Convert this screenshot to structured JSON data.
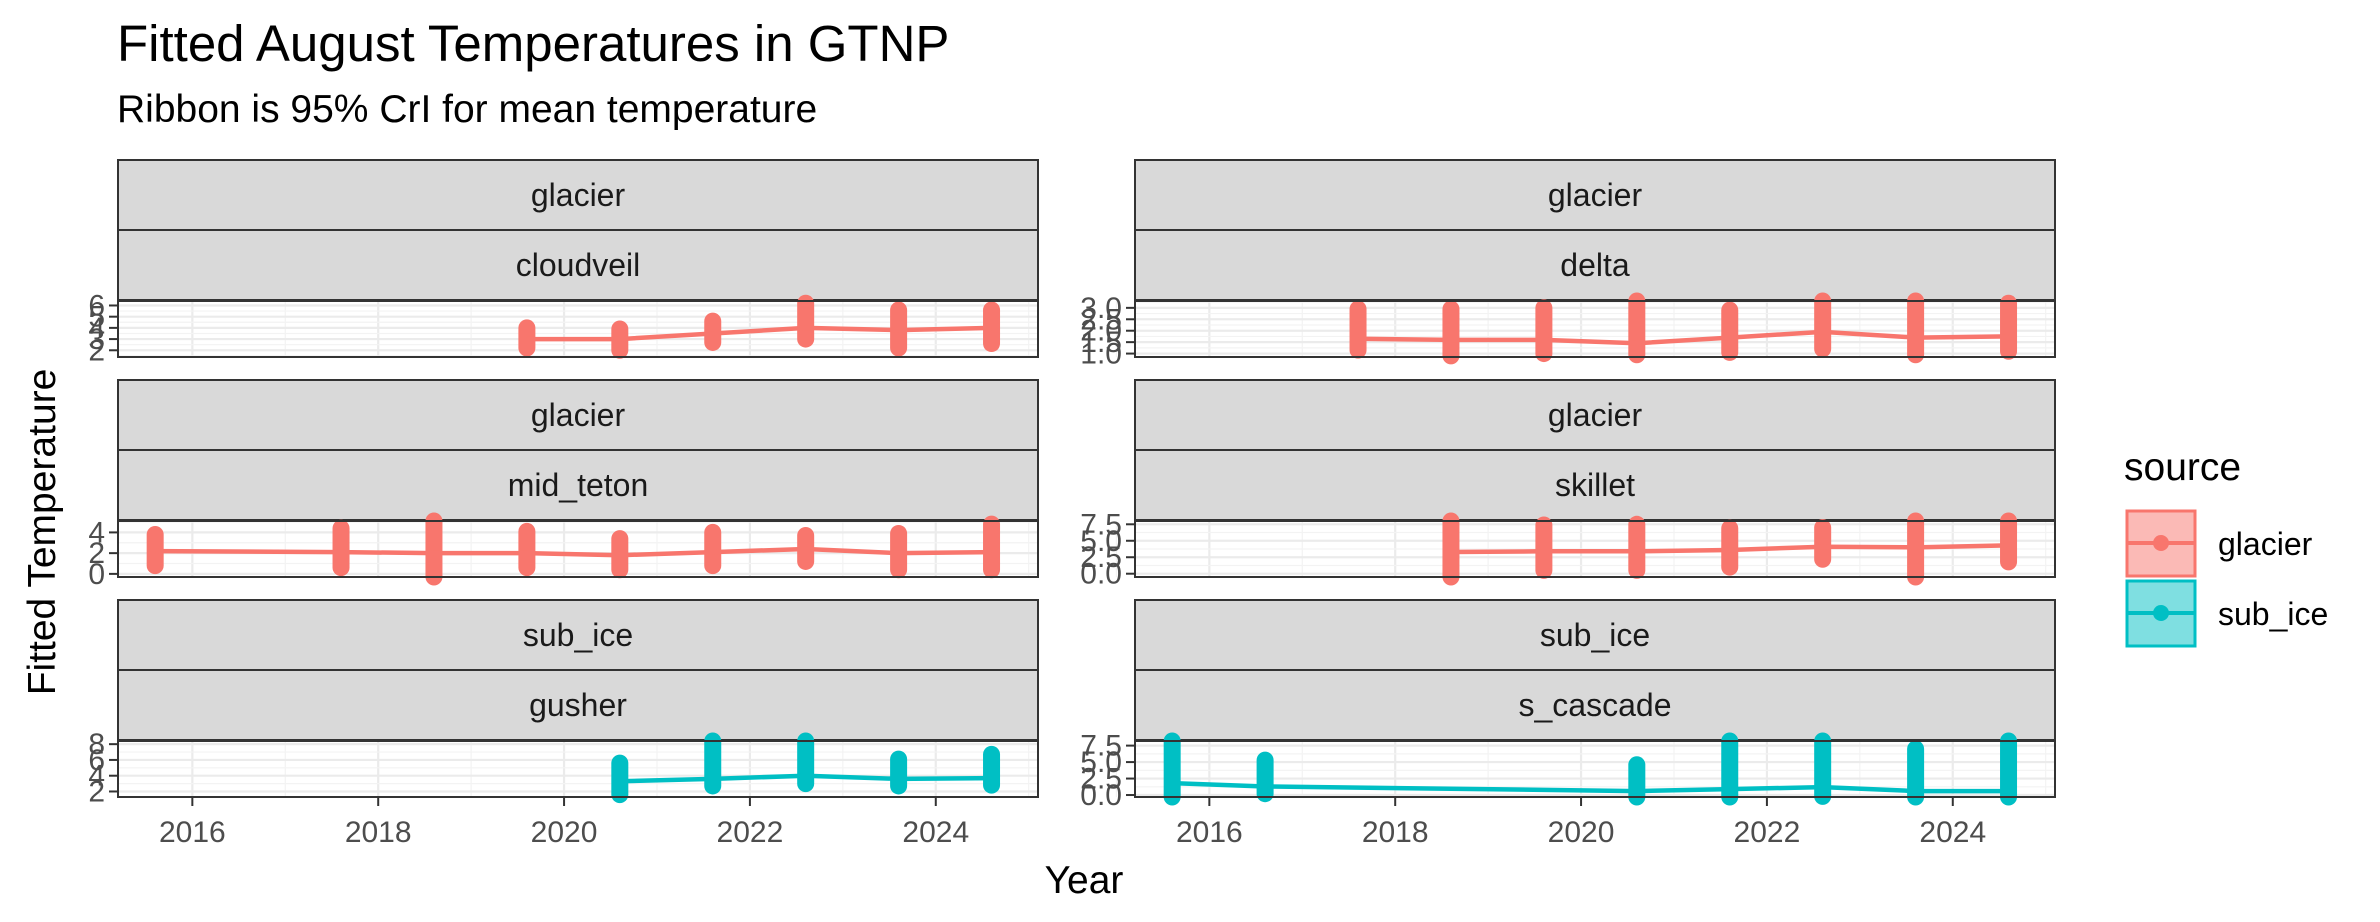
{
  "chart_data": {
    "type": "line",
    "title": "Fitted August Temperatures in GTNP",
    "subtitle": "Ribbon is 95% CrI for mean temperature",
    "xlabel": "Year",
    "ylabel": "Fitted Temperature",
    "xlim": [
      2015.2,
      2025.1
    ],
    "x_ticks": [
      2016,
      2018,
      2020,
      2022,
      2024
    ],
    "grid": true,
    "legend": {
      "title": "source",
      "position": "right",
      "entries": [
        {
          "name": "glacier",
          "color": "#F8766D"
        },
        {
          "name": "sub_ice",
          "color": "#00BFC4"
        }
      ]
    },
    "panels": [
      {
        "strip_top": "glacier",
        "strip_bottom": "cloudveil",
        "source": "glacier",
        "ylim": [
          1.4,
          6.4
        ],
        "y_ticks": [
          2,
          3,
          4,
          5,
          6
        ],
        "x": [
          2019.6,
          2020.6,
          2021.6,
          2022.6,
          2023.6,
          2024.6
        ],
        "y": [
          3.0,
          3.0,
          3.5,
          4.0,
          3.8,
          4.0
        ],
        "lower": [
          2.2,
          2.0,
          2.7,
          3.0,
          2.2,
          2.6
        ],
        "upper": [
          4.0,
          3.9,
          4.6,
          6.2,
          5.6,
          5.6
        ]
      },
      {
        "strip_top": "glacier",
        "strip_bottom": "delta",
        "source": "glacier",
        "ylim": [
          0.85,
          3.3
        ],
        "y_ticks": [
          1.0,
          1.5,
          2.0,
          2.5,
          3.0
        ],
        "x": [
          2017.6,
          2018.6,
          2019.6,
          2020.6,
          2021.6,
          2022.6,
          2023.6,
          2024.6
        ],
        "y": [
          1.65,
          1.6,
          1.6,
          1.45,
          1.7,
          1.95,
          1.7,
          1.75
        ],
        "lower": [
          1.15,
          0.9,
          1.0,
          0.95,
          1.05,
          1.2,
          0.95,
          1.1
        ],
        "upper": [
          2.95,
          2.95,
          3.0,
          3.3,
          2.9,
          3.3,
          3.3,
          3.2
        ]
      },
      {
        "strip_top": "glacier",
        "strip_bottom": "mid_teton",
        "source": "glacier",
        "ylim": [
          -0.3,
          5.1
        ],
        "y_ticks": [
          0,
          2,
          4
        ],
        "x": [
          2015.6,
          2017.6,
          2018.6,
          2019.6,
          2020.6,
          2021.6,
          2022.6,
          2023.6,
          2024.6
        ],
        "y": [
          2.2,
          2.1,
          2.0,
          2.0,
          1.8,
          2.1,
          2.4,
          2.0,
          2.1
        ],
        "lower": [
          0.8,
          0.6,
          -0.3,
          0.6,
          0.4,
          0.8,
          1.2,
          0.4,
          0.4
        ],
        "upper": [
          3.8,
          4.4,
          5.1,
          4.1,
          3.4,
          4.0,
          3.7,
          3.9,
          4.8
        ]
      },
      {
        "strip_top": "glacier",
        "strip_bottom": "skillet",
        "source": "glacier",
        "ylim": [
          -0.5,
          8.0
        ],
        "y_ticks": [
          0.0,
          2.5,
          5.0,
          7.5
        ],
        "x": [
          2018.6,
          2019.6,
          2020.6,
          2021.6,
          2022.6,
          2023.6,
          2024.6
        ],
        "y": [
          3.3,
          3.4,
          3.4,
          3.6,
          4.1,
          4.0,
          4.3
        ],
        "lower": [
          -0.5,
          0.5,
          0.5,
          1.0,
          2.2,
          -0.5,
          1.8
        ],
        "upper": [
          8.0,
          7.4,
          7.5,
          6.9,
          7.0,
          8.0,
          8.0
        ]
      },
      {
        "strip_top": "sub_ice",
        "strip_bottom": "gusher",
        "source": "sub_ice",
        "ylim": [
          1.3,
          8.4
        ],
        "y_ticks": [
          2,
          4,
          6,
          8
        ],
        "x": [
          2020.6,
          2021.6,
          2022.6,
          2023.6,
          2024.6
        ],
        "y": [
          3.3,
          3.6,
          4.0,
          3.6,
          3.7
        ],
        "lower": [
          1.6,
          2.7,
          3.0,
          2.7,
          2.8
        ],
        "upper": [
          5.6,
          8.4,
          8.4,
          6.1,
          6.7
        ]
      },
      {
        "strip_top": "sub_ice",
        "strip_bottom": "s_cascade",
        "source": "sub_ice",
        "ylim": [
          -0.3,
          8.2
        ],
        "y_ticks": [
          0.0,
          2.5,
          5.0,
          7.5
        ],
        "x": [
          2015.6,
          2016.6,
          2020.6,
          2021.6,
          2022.6,
          2023.6,
          2024.6
        ],
        "y": [
          1.8,
          1.3,
          0.6,
          0.9,
          1.2,
          0.6,
          0.6
        ],
        "lower": [
          -0.3,
          0.2,
          -0.3,
          -0.3,
          -0.2,
          -0.3,
          -0.3
        ],
        "upper": [
          8.2,
          5.3,
          4.6,
          8.2,
          8.2,
          7.0,
          8.2
        ]
      }
    ]
  }
}
